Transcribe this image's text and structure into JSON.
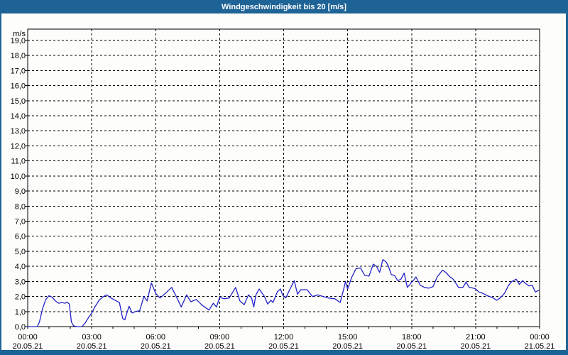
{
  "window": {
    "title": "Windgeschwindigkeit bis 20 [m/s]"
  },
  "colors": {
    "title_bar": "#1e6396",
    "window_border": "#1e6396",
    "background": "#fdfdfb",
    "line": "#2222c8",
    "grid": "#000000",
    "axis": "#000000",
    "title_text": "#ffffff",
    "label_text": "#000000"
  },
  "chart_data": {
    "type": "line",
    "title": "Windgeschwindigkeit bis 20 [m/s]",
    "ylabel": "m/s",
    "xlabel": "",
    "x_range_hours": [
      0,
      24
    ],
    "y_range": [
      0,
      19.75
    ],
    "x_minor_tick_hours": 1,
    "grid_on": true,
    "grid_v_hours": [
      3,
      6,
      9,
      12,
      15,
      18,
      21
    ],
    "grid_h_values": [
      1,
      2,
      3,
      4,
      5,
      6,
      7,
      8,
      9,
      10,
      11,
      12,
      13,
      14,
      15,
      16,
      17,
      18,
      19
    ],
    "y_ticks": [
      {
        "v": 0,
        "label": "0,0"
      },
      {
        "v": 1,
        "label": "1,0"
      },
      {
        "v": 2,
        "label": "2,0"
      },
      {
        "v": 3,
        "label": "3,0"
      },
      {
        "v": 4,
        "label": "4,0"
      },
      {
        "v": 5,
        "label": "5,0"
      },
      {
        "v": 6,
        "label": "6,0"
      },
      {
        "v": 7,
        "label": "7,0"
      },
      {
        "v": 8,
        "label": "8,0"
      },
      {
        "v": 9,
        "label": "9,0"
      },
      {
        "v": 10,
        "label": "10,0"
      },
      {
        "v": 11,
        "label": "11,0"
      },
      {
        "v": 12,
        "label": "12,0"
      },
      {
        "v": 13,
        "label": "13,0"
      },
      {
        "v": 14,
        "label": "14,0"
      },
      {
        "v": 15,
        "label": "15,0"
      },
      {
        "v": 16,
        "label": "16,0"
      },
      {
        "v": 17,
        "label": "17,0"
      },
      {
        "v": 18,
        "label": "18,0"
      },
      {
        "v": 19,
        "label": "19,0"
      }
    ],
    "x_ticks": [
      {
        "hour": 0,
        "time": "00:00",
        "date": "20.05.21"
      },
      {
        "hour": 3,
        "time": "03:00",
        "date": "20.05.21"
      },
      {
        "hour": 6,
        "time": "06:00",
        "date": "20.05.21"
      },
      {
        "hour": 9,
        "time": "09:00",
        "date": "20.05.21"
      },
      {
        "hour": 12,
        "time": "12:00",
        "date": "20.05.21"
      },
      {
        "hour": 15,
        "time": "15:00",
        "date": "20.05.21"
      },
      {
        "hour": 18,
        "time": "18:00",
        "date": "20.05.21"
      },
      {
        "hour": 21,
        "time": "21:00",
        "date": "20.05.21"
      },
      {
        "hour": 24,
        "time": "00:00",
        "date": "21.05.21"
      }
    ],
    "series": [
      {
        "points": [
          [
            0,
            0
          ],
          [
            0.45,
            0
          ],
          [
            0.55,
            0.3
          ],
          [
            0.7,
            1.2
          ],
          [
            0.85,
            1.8
          ],
          [
            1.0,
            2.05
          ],
          [
            1.15,
            1.95
          ],
          [
            1.3,
            1.7
          ],
          [
            1.45,
            1.55
          ],
          [
            1.6,
            1.6
          ],
          [
            1.75,
            1.55
          ],
          [
            1.85,
            1.62
          ],
          [
            1.95,
            1.5
          ],
          [
            2.05,
            0.3
          ],
          [
            2.15,
            0.05
          ],
          [
            2.3,
            0
          ],
          [
            2.55,
            0
          ],
          [
            2.7,
            0.25
          ],
          [
            2.85,
            0.6
          ],
          [
            3.0,
            0.9
          ],
          [
            3.15,
            1.3
          ],
          [
            3.35,
            1.75
          ],
          [
            3.55,
            2.0
          ],
          [
            3.7,
            2.1
          ],
          [
            3.9,
            1.9
          ],
          [
            4.1,
            1.75
          ],
          [
            4.3,
            1.6
          ],
          [
            4.45,
            0.55
          ],
          [
            4.55,
            0.45
          ],
          [
            4.75,
            1.35
          ],
          [
            4.9,
            0.9
          ],
          [
            5.05,
            1.0
          ],
          [
            5.25,
            1.05
          ],
          [
            5.45,
            2.0
          ],
          [
            5.6,
            1.7
          ],
          [
            5.8,
            2.9
          ],
          [
            6.0,
            2.2
          ],
          [
            6.2,
            1.9
          ],
          [
            6.45,
            2.2
          ],
          [
            6.75,
            2.6
          ],
          [
            7.0,
            1.9
          ],
          [
            7.2,
            1.3
          ],
          [
            7.45,
            2.1
          ],
          [
            7.65,
            1.65
          ],
          [
            7.9,
            1.8
          ],
          [
            8.2,
            1.4
          ],
          [
            8.5,
            1.1
          ],
          [
            8.7,
            1.55
          ],
          [
            8.85,
            1.3
          ],
          [
            9.0,
            1.95
          ],
          [
            9.2,
            1.85
          ],
          [
            9.45,
            1.9
          ],
          [
            9.75,
            2.6
          ],
          [
            9.95,
            1.7
          ],
          [
            10.15,
            1.45
          ],
          [
            10.35,
            2.1
          ],
          [
            10.5,
            1.9
          ],
          [
            10.6,
            1.3
          ],
          [
            10.7,
            2.1
          ],
          [
            10.85,
            2.5
          ],
          [
            11.1,
            2.0
          ],
          [
            11.25,
            1.5
          ],
          [
            11.4,
            1.75
          ],
          [
            11.5,
            1.6
          ],
          [
            11.7,
            2.3
          ],
          [
            11.85,
            2.5
          ],
          [
            11.95,
            2.1
          ],
          [
            12.1,
            1.9
          ],
          [
            12.3,
            2.5
          ],
          [
            12.5,
            3.05
          ],
          [
            12.65,
            2.15
          ],
          [
            12.8,
            2.45
          ],
          [
            13.1,
            2.45
          ],
          [
            13.35,
            2.0
          ],
          [
            13.6,
            2.1
          ],
          [
            13.85,
            2.0
          ],
          [
            14.1,
            1.9
          ],
          [
            14.4,
            1.85
          ],
          [
            14.65,
            1.6
          ],
          [
            14.8,
            2.4
          ],
          [
            14.9,
            3.0
          ],
          [
            15.0,
            2.5
          ],
          [
            15.2,
            3.3
          ],
          [
            15.4,
            3.85
          ],
          [
            15.6,
            3.9
          ],
          [
            15.8,
            3.4
          ],
          [
            16.0,
            3.35
          ],
          [
            16.2,
            4.15
          ],
          [
            16.35,
            4.0
          ],
          [
            16.5,
            3.6
          ],
          [
            16.65,
            4.45
          ],
          [
            16.8,
            4.3
          ],
          [
            16.9,
            4.05
          ],
          [
            17.05,
            3.45
          ],
          [
            17.2,
            3.4
          ],
          [
            17.35,
            3.05
          ],
          [
            17.5,
            3.15
          ],
          [
            17.65,
            3.55
          ],
          [
            17.8,
            2.6
          ],
          [
            17.95,
            2.85
          ],
          [
            18.1,
            3.1
          ],
          [
            18.2,
            3.3
          ],
          [
            18.4,
            2.75
          ],
          [
            18.6,
            2.6
          ],
          [
            18.8,
            2.55
          ],
          [
            19.0,
            2.65
          ],
          [
            19.2,
            3.3
          ],
          [
            19.45,
            3.75
          ],
          [
            19.6,
            3.6
          ],
          [
            19.8,
            3.3
          ],
          [
            19.95,
            3.15
          ],
          [
            20.2,
            2.6
          ],
          [
            20.4,
            2.6
          ],
          [
            20.55,
            2.95
          ],
          [
            20.7,
            2.6
          ],
          [
            20.9,
            2.55
          ],
          [
            21.0,
            2.5
          ],
          [
            21.15,
            2.3
          ],
          [
            21.35,
            2.2
          ],
          [
            21.55,
            2.05
          ],
          [
            21.75,
            1.95
          ],
          [
            22.0,
            1.75
          ],
          [
            22.15,
            1.9
          ],
          [
            22.35,
            2.2
          ],
          [
            22.55,
            2.75
          ],
          [
            22.7,
            3.0
          ],
          [
            22.9,
            3.15
          ],
          [
            23.05,
            2.8
          ],
          [
            23.2,
            3.05
          ],
          [
            23.35,
            2.85
          ],
          [
            23.5,
            2.7
          ],
          [
            23.65,
            2.75
          ],
          [
            23.8,
            2.3
          ],
          [
            23.95,
            2.4
          ]
        ]
      }
    ]
  }
}
